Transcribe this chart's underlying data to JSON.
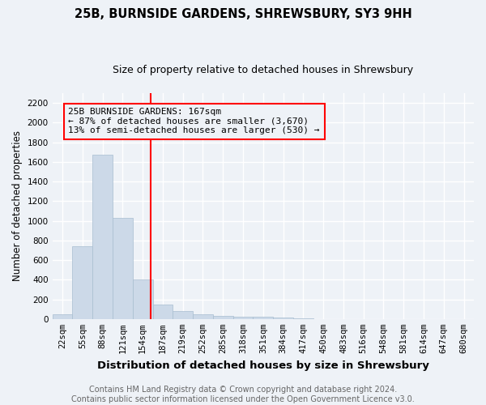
{
  "title": "25B, BURNSIDE GARDENS, SHREWSBURY, SY3 9HH",
  "subtitle": "Size of property relative to detached houses in Shrewsbury",
  "xlabel": "Distribution of detached houses by size in Shrewsbury",
  "ylabel": "Number of detached properties",
  "bar_labels": [
    "22sqm",
    "55sqm",
    "88sqm",
    "121sqm",
    "154sqm",
    "187sqm",
    "219sqm",
    "252sqm",
    "285sqm",
    "318sqm",
    "351sqm",
    "384sqm",
    "417sqm",
    "450sqm",
    "483sqm",
    "516sqm",
    "548sqm",
    "581sqm",
    "614sqm",
    "647sqm",
    "680sqm"
  ],
  "bar_values": [
    50,
    740,
    1670,
    1030,
    400,
    150,
    80,
    45,
    35,
    25,
    20,
    15,
    10,
    0,
    0,
    0,
    0,
    0,
    0,
    0,
    0
  ],
  "bar_color": "#ccd9e8",
  "bar_edge_color": "#a8bdd0",
  "ylim": [
    0,
    2300
  ],
  "yticks": [
    0,
    200,
    400,
    600,
    800,
    1000,
    1200,
    1400,
    1600,
    1800,
    2000,
    2200
  ],
  "red_line_x": 4.39,
  "annotation_line1": "25B BURNSIDE GARDENS: 167sqm",
  "annotation_line2": "← 87% of detached houses are smaller (3,670)",
  "annotation_line3": "13% of semi-detached houses are larger (530) →",
  "footer_line1": "Contains HM Land Registry data © Crown copyright and database right 2024.",
  "footer_line2": "Contains public sector information licensed under the Open Government Licence v3.0.",
  "bg_color": "#eef2f7",
  "grid_color": "#ffffff",
  "title_fontsize": 10.5,
  "subtitle_fontsize": 9,
  "xlabel_fontsize": 9.5,
  "ylabel_fontsize": 8.5,
  "tick_fontsize": 7.5,
  "annotation_fontsize": 8,
  "footer_fontsize": 7
}
